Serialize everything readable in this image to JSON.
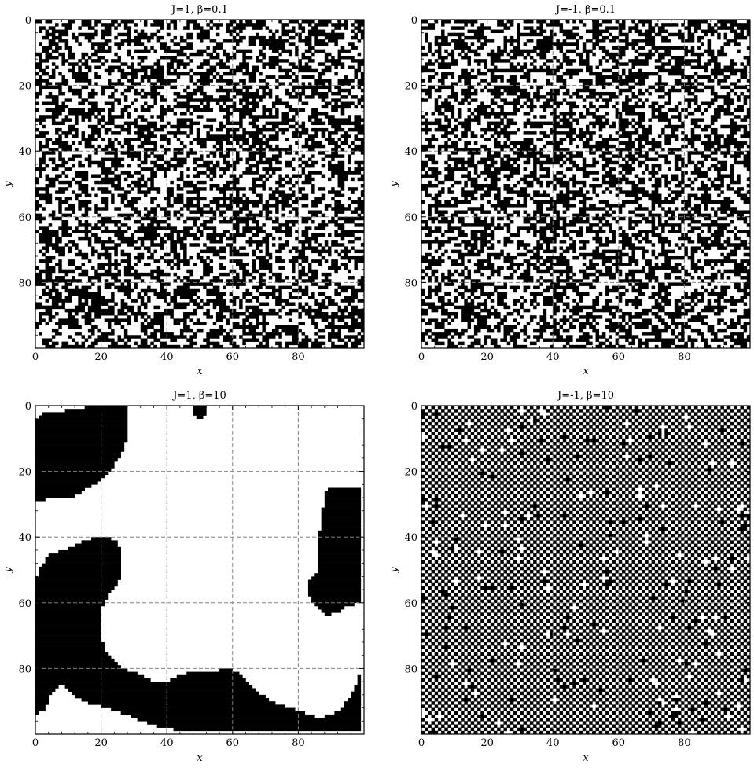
{
  "figure": {
    "colormap": {
      "spin_up": "#ffffff",
      "spin_down": "#000000"
    },
    "grid_line_color": "#808080"
  },
  "chart_data": [
    {
      "type": "heatmap",
      "title": "J=1, β=0.1",
      "J": 1,
      "beta": 0.1,
      "xlabel": "x",
      "ylabel": "y",
      "lattice_size": 100,
      "xlim": [
        0,
        99
      ],
      "ylim": [
        99,
        0
      ],
      "xticks": [
        0,
        20,
        40,
        60,
        80
      ],
      "yticks": [
        0,
        20,
        40,
        60,
        80
      ],
      "grid": true,
      "pattern": "random",
      "fraction_up": 0.5,
      "blocks": []
    },
    {
      "type": "heatmap",
      "title": "J=-1, β=0.1",
      "J": -1,
      "beta": 0.1,
      "xlabel": "x",
      "ylabel": "y",
      "lattice_size": 100,
      "xlim": [
        0,
        99
      ],
      "ylim": [
        99,
        0
      ],
      "xticks": [
        0,
        20,
        40,
        60,
        80
      ],
      "yticks": [
        0,
        20,
        40,
        60,
        80
      ],
      "grid": true,
      "pattern": "random",
      "fraction_up": 0.5,
      "blocks": []
    },
    {
      "type": "heatmap",
      "title": "J=1, β=10",
      "J": 1,
      "beta": 10,
      "xlabel": "x",
      "ylabel": "y",
      "lattice_size": 100,
      "xlim": [
        0,
        99
      ],
      "ylim": [
        99,
        0
      ],
      "xticks": [
        0,
        20,
        40,
        60,
        80
      ],
      "yticks": [
        0,
        20,
        40,
        60,
        80
      ],
      "grid": true,
      "pattern": "domains",
      "domains": [
        {
          "spin": -1,
          "polygon": [
            [
              0,
              5
            ],
            [
              3,
              2
            ],
            [
              8,
              2
            ],
            [
              10,
              1
            ],
            [
              20,
              0
            ],
            [
              28,
              0
            ],
            [
              28,
              10
            ],
            [
              27,
              12
            ],
            [
              26,
              16
            ],
            [
              24,
              18
            ],
            [
              22,
              21
            ],
            [
              19,
              24
            ],
            [
              16,
              25
            ],
            [
              14,
              27
            ],
            [
              10,
              28
            ],
            [
              5,
              28
            ],
            [
              2,
              29
            ],
            [
              0,
              29
            ]
          ]
        },
        {
          "spin": -1,
          "polygon": [
            [
              48,
              0
            ],
            [
              52,
              0
            ],
            [
              52,
              3
            ],
            [
              50,
              4
            ],
            [
              48,
              3
            ]
          ]
        },
        {
          "spin": -1,
          "polygon": [
            [
              0,
              94
            ],
            [
              3,
              93
            ],
            [
              5,
              87
            ],
            [
              8,
              85
            ],
            [
              10,
              86
            ],
            [
              11,
              88
            ],
            [
              15,
              90
            ],
            [
              18,
              91
            ],
            [
              22,
              92
            ],
            [
              25,
              93
            ],
            [
              30,
              95
            ],
            [
              35,
              97
            ],
            [
              40,
              98
            ],
            [
              45,
              99
            ],
            [
              99,
              99
            ],
            [
              99,
              80
            ],
            [
              98,
              84
            ],
            [
              96,
              88
            ],
            [
              93,
              93
            ],
            [
              90,
              94
            ],
            [
              87,
              95
            ],
            [
              84,
              94
            ],
            [
              80,
              93
            ],
            [
              75,
              91
            ],
            [
              72,
              90
            ],
            [
              69,
              88
            ],
            [
              66,
              85
            ],
            [
              63,
              82
            ],
            [
              59,
              80
            ],
            [
              53,
              81
            ],
            [
              48,
              81
            ],
            [
              44,
              82
            ],
            [
              40,
              84
            ],
            [
              36,
              84
            ],
            [
              32,
              82
            ],
            [
              27,
              80
            ],
            [
              24,
              78
            ],
            [
              21,
              74
            ],
            [
              20,
              70
            ],
            [
              20,
              62
            ],
            [
              22,
              58
            ],
            [
              24,
              56
            ],
            [
              26,
              52
            ],
            [
              26,
              45
            ],
            [
              25,
              41
            ],
            [
              22,
              40
            ],
            [
              18,
              40
            ],
            [
              13,
              42
            ],
            [
              9,
              44
            ],
            [
              5,
              45
            ],
            [
              3,
              47
            ],
            [
              1,
              50
            ],
            [
              0,
              54
            ]
          ]
        },
        {
          "spin": -1,
          "polygon": [
            [
              99,
              15
            ],
            [
              99,
              25
            ],
            [
              90,
              25
            ],
            [
              88,
              27
            ],
            [
              87,
              35
            ],
            [
              86,
              42
            ],
            [
              86,
              50
            ],
            [
              85,
              52
            ],
            [
              83,
              53
            ],
            [
              83,
              57
            ],
            [
              84,
              59
            ],
            [
              86,
              62
            ],
            [
              89,
              64
            ],
            [
              92,
              63
            ],
            [
              95,
              61
            ],
            [
              99,
              60
            ],
            [
              99,
              15
            ]
          ]
        },
        {
          "spin": -1,
          "polygon": [
            [
              0,
              54
            ],
            [
              1,
              50
            ],
            [
              3,
              47
            ],
            [
              5,
              45
            ],
            [
              9,
              44
            ],
            [
              13,
              42
            ],
            [
              18,
              40
            ],
            [
              22,
              40
            ],
            [
              25,
              41
            ],
            [
              26,
              45
            ],
            [
              26,
              52
            ],
            [
              24,
              56
            ],
            [
              22,
              58
            ],
            [
              20,
              62
            ],
            [
              20,
              70
            ],
            [
              21,
              74
            ],
            [
              24,
              78
            ],
            [
              27,
              80
            ],
            [
              32,
              82
            ],
            [
              36,
              84
            ],
            [
              40,
              84
            ],
            [
              44,
              82
            ],
            [
              48,
              81
            ],
            [
              53,
              81
            ],
            [
              59,
              80
            ],
            [
              63,
              82
            ],
            [
              66,
              85
            ],
            [
              69,
              88
            ],
            [
              72,
              90
            ],
            [
              75,
              91
            ],
            [
              80,
              93
            ],
            [
              84,
              94
            ],
            [
              87,
              95
            ],
            [
              90,
              94
            ],
            [
              93,
              93
            ],
            [
              96,
              88
            ],
            [
              98,
              84
            ],
            [
              99,
              80
            ],
            [
              99,
              60
            ],
            [
              95,
              61
            ],
            [
              92,
              63
            ],
            [
              89,
              64
            ],
            [
              86,
              62
            ],
            [
              84,
              59
            ],
            [
              83,
              57
            ],
            [
              83,
              53
            ],
            [
              85,
              52
            ],
            [
              86,
              50
            ],
            [
              86,
              42
            ],
            [
              87,
              35
            ],
            [
              88,
              27
            ],
            [
              90,
              25
            ],
            [
              99,
              25
            ],
            [
              99,
              15
            ],
            [
              96,
              13
            ],
            [
              92,
              11
            ],
            [
              88,
              11
            ],
            [
              84,
              12
            ],
            [
              80,
              13
            ],
            [
              76,
              15
            ],
            [
              73,
              18
            ],
            [
              71,
              22
            ],
            [
              70,
              26
            ],
            [
              69,
              31
            ],
            [
              69,
              35
            ],
            [
              66,
              38
            ],
            [
              62,
              39
            ],
            [
              58,
              42
            ],
            [
              56,
              44
            ],
            [
              55,
              46
            ],
            [
              55,
              53
            ],
            [
              55,
              58
            ],
            [
              53,
              62
            ],
            [
              50,
              64
            ],
            [
              45,
              65
            ],
            [
              40,
              65
            ],
            [
              35,
              65
            ],
            [
              30,
              64
            ],
            [
              27,
              61
            ],
            [
              24,
              58
            ]
          ]
        }
      ],
      "blocks": []
    },
    {
      "type": "heatmap",
      "title": "J=-1, β=10",
      "J": -1,
      "beta": 10,
      "xlabel": "x",
      "ylabel": "y",
      "lattice_size": 100,
      "xlim": [
        0,
        99
      ],
      "ylim": [
        99,
        0
      ],
      "xticks": [
        0,
        20,
        40,
        60,
        80
      ],
      "yticks": [
        0,
        20,
        40,
        60,
        80
      ],
      "grid": true,
      "pattern": "checkerboard",
      "defect_rate": 0.02,
      "blocks": []
    }
  ]
}
